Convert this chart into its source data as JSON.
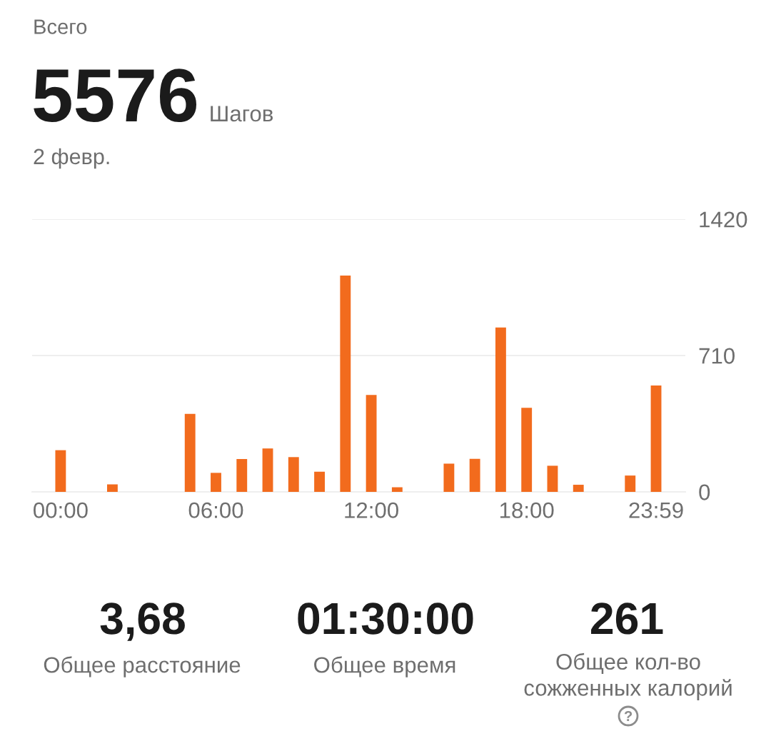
{
  "chart_data": {
    "type": "bar",
    "title": "Всего",
    "subtitle": "2 февр.",
    "categories": [
      "00:00",
      null,
      null,
      null,
      null,
      null,
      "06:00",
      null,
      null,
      null,
      null,
      null,
      "12:00",
      null,
      null,
      null,
      null,
      null,
      "18:00",
      null,
      null,
      null,
      null,
      "23:59"
    ],
    "values": [
      217,
      null,
      39,
      null,
      null,
      406,
      99,
      171,
      226,
      181,
      105,
      1126,
      505,
      24,
      null,
      147,
      172,
      856,
      438,
      136,
      37,
      null,
      85,
      554
    ],
    "color": "#f26b1d",
    "ylim": [
      0,
      1420
    ],
    "yticks": [
      0,
      710,
      1420
    ],
    "grid": "y",
    "annotations": [
      "5576",
      "Шагов",
      "3,68",
      "Общее расстояние",
      "01:30:00",
      "Общее время",
      "261",
      "Общее кол-во\nсожженных калорий"
    ]
  }
}
